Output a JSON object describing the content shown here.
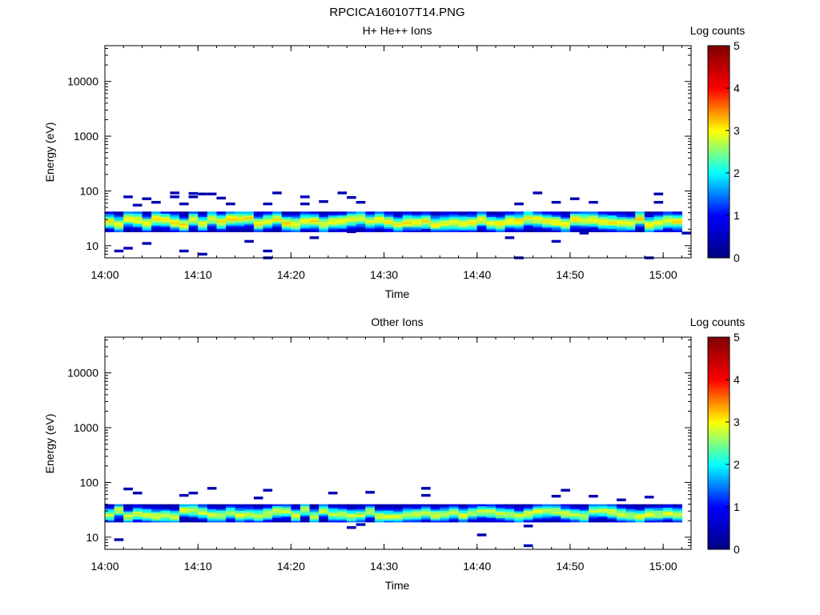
{
  "page_title": "RPCICA160107T14.PNG",
  "colors": {
    "colormap": [
      "#000080",
      "#0000ff",
      "#00ffff",
      "#ffff00",
      "#ff0000",
      "#800000"
    ],
    "axis": "#000000",
    "background": "#ffffff"
  },
  "chart_data": [
    {
      "type": "heatmap",
      "title": "H+ He++ Ions",
      "xlabel": "Time",
      "ylabel": "Energy (eV)",
      "yscale": "log",
      "ylim": [
        6,
        45000
      ],
      "xlim": [
        "14:00",
        "15:03"
      ],
      "x_ticks": [
        "14:00",
        "14:10",
        "14:20",
        "14:30",
        "14:40",
        "14:50",
        "15:00"
      ],
      "y_ticks": [
        10,
        100,
        1000,
        10000
      ],
      "y_tick_labels": [
        "10",
        "100",
        "1000",
        "10000"
      ],
      "colorbar": {
        "label": "Log counts",
        "range": [
          0,
          5
        ],
        "ticks": [
          "0",
          "1",
          "2",
          "3",
          "4",
          "5"
        ]
      },
      "band": {
        "low_eV": 18,
        "high_eV": 42,
        "peak_eV": 28,
        "peak_log_counts": 3.0,
        "x_start": "14:00",
        "x_end": "15:02"
      },
      "sparse_points": [
        {
          "t": "14:01",
          "e": 8,
          "v": 0.4
        },
        {
          "t": "14:02",
          "e": 9,
          "v": 0.4
        },
        {
          "t": "14:02",
          "e": 78,
          "v": 0.4
        },
        {
          "t": "14:03",
          "e": 55,
          "v": 0.4
        },
        {
          "t": "14:04",
          "e": 72,
          "v": 0.4
        },
        {
          "t": "14:04",
          "e": 11,
          "v": 0.4
        },
        {
          "t": "14:05",
          "e": 62,
          "v": 0.4
        },
        {
          "t": "14:07",
          "e": 92,
          "v": 0.4
        },
        {
          "t": "14:07",
          "e": 78,
          "v": 0.4
        },
        {
          "t": "14:08",
          "e": 8,
          "v": 0.4
        },
        {
          "t": "14:08",
          "e": 58,
          "v": 0.4
        },
        {
          "t": "14:09",
          "e": 90,
          "v": 0.4
        },
        {
          "t": "14:09",
          "e": 78,
          "v": 0.4
        },
        {
          "t": "14:10",
          "e": 7,
          "v": 0.4
        },
        {
          "t": "14:10",
          "e": 88,
          "v": 0.4
        },
        {
          "t": "14:11",
          "e": 88,
          "v": 0.4
        },
        {
          "t": "14:12",
          "e": 74,
          "v": 0.4
        },
        {
          "t": "14:13",
          "e": 58,
          "v": 0.4
        },
        {
          "t": "14:15",
          "e": 12,
          "v": 0.4
        },
        {
          "t": "14:17",
          "e": 6,
          "v": 0.4
        },
        {
          "t": "14:17",
          "e": 8,
          "v": 0.4
        },
        {
          "t": "14:17",
          "e": 58,
          "v": 0.4
        },
        {
          "t": "14:18",
          "e": 92,
          "v": 0.4
        },
        {
          "t": "14:21",
          "e": 78,
          "v": 0.4
        },
        {
          "t": "14:21",
          "e": 58,
          "v": 0.4
        },
        {
          "t": "14:22",
          "e": 14,
          "v": 0.4
        },
        {
          "t": "14:23",
          "e": 64,
          "v": 0.4
        },
        {
          "t": "14:25",
          "e": 92,
          "v": 0.4
        },
        {
          "t": "14:26",
          "e": 76,
          "v": 0.4
        },
        {
          "t": "14:26",
          "e": 18,
          "v": 0.4
        },
        {
          "t": "14:27",
          "e": 62,
          "v": 0.4
        },
        {
          "t": "14:43",
          "e": 14,
          "v": 0.4
        },
        {
          "t": "14:44",
          "e": 58,
          "v": 0.4
        },
        {
          "t": "14:44",
          "e": 6,
          "v": 0.4
        },
        {
          "t": "14:46",
          "e": 92,
          "v": 0.4
        },
        {
          "t": "14:48",
          "e": 62,
          "v": 0.4
        },
        {
          "t": "14:48",
          "e": 12,
          "v": 0.4
        },
        {
          "t": "14:50",
          "e": 72,
          "v": 0.4
        },
        {
          "t": "14:51",
          "e": 17,
          "v": 0.4
        },
        {
          "t": "14:52",
          "e": 62,
          "v": 0.4
        },
        {
          "t": "14:58",
          "e": 6,
          "v": 0.4
        },
        {
          "t": "14:59",
          "e": 88,
          "v": 0.4
        },
        {
          "t": "14:59",
          "e": 62,
          "v": 0.4
        },
        {
          "t": "15:02",
          "e": 17,
          "v": 0.4
        }
      ]
    },
    {
      "type": "heatmap",
      "title": "Other Ions",
      "xlabel": "Time",
      "ylabel": "Energy (eV)",
      "yscale": "log",
      "ylim": [
        6,
        45000
      ],
      "xlim": [
        "14:00",
        "15:03"
      ],
      "x_ticks": [
        "14:00",
        "14:10",
        "14:20",
        "14:30",
        "14:40",
        "14:50",
        "15:00"
      ],
      "y_ticks": [
        10,
        100,
        1000,
        10000
      ],
      "y_tick_labels": [
        "10",
        "100",
        "1000",
        "10000"
      ],
      "colorbar": {
        "label": "Log counts",
        "range": [
          0,
          5
        ],
        "ticks": [
          "0",
          "1",
          "2",
          "3",
          "4",
          "5"
        ]
      },
      "band": {
        "low_eV": 19,
        "high_eV": 40,
        "peak_eV": 28,
        "peak_log_counts": 2.8,
        "x_start": "14:00",
        "x_end": "15:02"
      },
      "sparse_points": [
        {
          "t": "14:01",
          "e": 9,
          "v": 0.4
        },
        {
          "t": "14:02",
          "e": 76,
          "v": 0.4
        },
        {
          "t": "14:03",
          "e": 64,
          "v": 0.4
        },
        {
          "t": "14:08",
          "e": 58,
          "v": 0.4
        },
        {
          "t": "14:09",
          "e": 64,
          "v": 0.4
        },
        {
          "t": "14:11",
          "e": 78,
          "v": 0.4
        },
        {
          "t": "14:16",
          "e": 52,
          "v": 0.4
        },
        {
          "t": "14:17",
          "e": 72,
          "v": 0.4
        },
        {
          "t": "14:24",
          "e": 64,
          "v": 0.4
        },
        {
          "t": "14:26",
          "e": 15,
          "v": 0.4
        },
        {
          "t": "14:27",
          "e": 17,
          "v": 0.4
        },
        {
          "t": "14:28",
          "e": 66,
          "v": 0.4
        },
        {
          "t": "14:34",
          "e": 78,
          "v": 0.4
        },
        {
          "t": "14:34",
          "e": 58,
          "v": 0.4
        },
        {
          "t": "14:40",
          "e": 11,
          "v": 0.4
        },
        {
          "t": "14:45",
          "e": 7,
          "v": 0.4
        },
        {
          "t": "14:45",
          "e": 16,
          "v": 0.4
        },
        {
          "t": "14:48",
          "e": 56,
          "v": 0.4
        },
        {
          "t": "14:49",
          "e": 72,
          "v": 0.4
        },
        {
          "t": "14:52",
          "e": 56,
          "v": 0.4
        },
        {
          "t": "14:55",
          "e": 48,
          "v": 0.4
        },
        {
          "t": "14:58",
          "e": 54,
          "v": 0.4
        }
      ]
    }
  ]
}
